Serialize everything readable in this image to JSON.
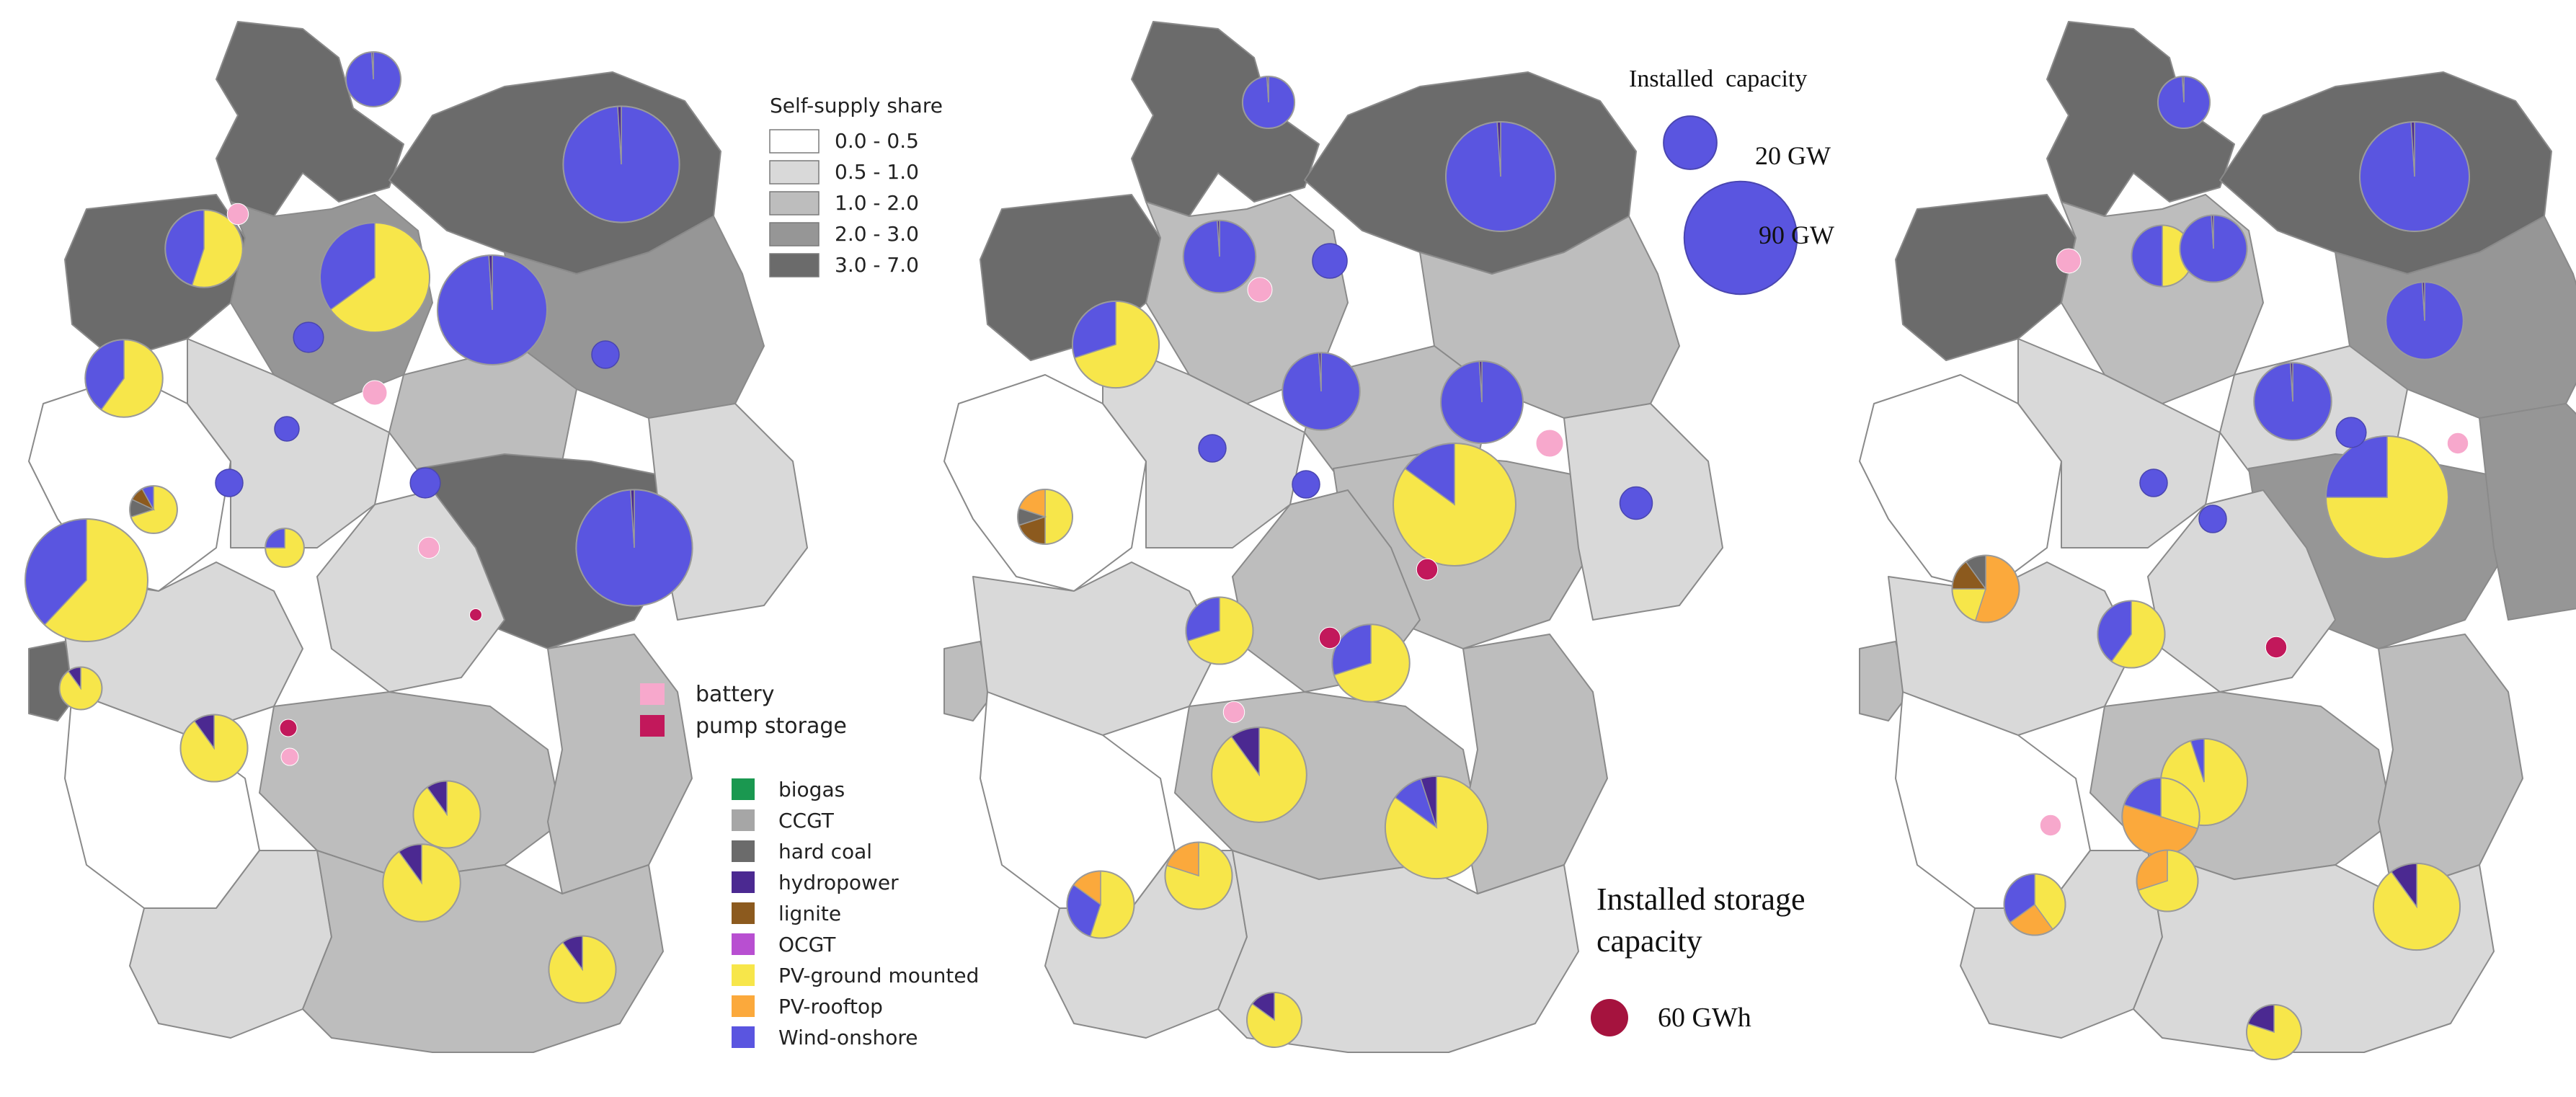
{
  "self_supply_legend": {
    "title": "Self-supply share",
    "classes": [
      {
        "label": "0.0 - 0.5",
        "color": "#ffffff"
      },
      {
        "label": "0.5 - 1.0",
        "color": "#d9d9d9"
      },
      {
        "label": "1.0 - 2.0",
        "color": "#bdbdbd"
      },
      {
        "label": "2.0 - 3.0",
        "color": "#969696"
      },
      {
        "label": "3.0 - 7.0",
        "color": "#6b6b6b"
      }
    ]
  },
  "storage_legend": {
    "items": [
      {
        "label": "battery",
        "color": "#f7a8cc"
      },
      {
        "label": "pump storage",
        "color": "#c2185b"
      }
    ]
  },
  "technology_legend": {
    "items": [
      {
        "label": "biogas",
        "color": "#1a9850"
      },
      {
        "label": "CCGT",
        "color": "#a6a6a6"
      },
      {
        "label": "hard coal",
        "color": "#6b6b6b"
      },
      {
        "label": "hydropower",
        "color": "#4b2991"
      },
      {
        "label": "lignite",
        "color": "#8c5a1e"
      },
      {
        "label": "OCGT",
        "color": "#b84fd1"
      },
      {
        "label": "PV-ground mounted",
        "color": "#f7e64a"
      },
      {
        "label": "PV-rooftop",
        "color": "#fba93c"
      },
      {
        "label": "Wind-onshore",
        "color": "#5a55e0"
      }
    ]
  },
  "capacity_legend": {
    "title": "Installed  capacity",
    "items": [
      {
        "label": "20 GW",
        "gw": 20
      },
      {
        "label": "90 GW",
        "gw": 90
      }
    ]
  },
  "storage_capacity_legend": {
    "title_line1": "Installed storage",
    "title_line2": "capacity",
    "item": {
      "label": "60 GWh",
      "gwh": 60
    }
  },
  "colors": {
    "border": "#8a8a8a",
    "pie_outline": "#9a9a9a",
    "circle_outline": "#4a46b0"
  },
  "maps": [
    {
      "name": "scenario-1",
      "pies": [
        {
          "gw": 20,
          "parts": {
            "wind": 0.99,
            "hydro": 0.01
          }
        },
        {
          "gw": 90,
          "parts": {
            "wind": 0.99,
            "hydro": 0.01
          }
        },
        {
          "gw": 40,
          "parts": {
            "pv": 0.55,
            "wind": 0.45
          }
        },
        {
          "gw": 80,
          "parts": {
            "pv": 0.65,
            "wind": 0.35
          }
        },
        {
          "gw": 40,
          "parts": {
            "pv": 0.6,
            "wind": 0.4
          }
        },
        {
          "gw": 80,
          "parts": {
            "wind": 0.99,
            "hydro": 0.01
          }
        },
        {
          "gw": 90,
          "parts": {
            "wind": 0.99,
            "hydro": 0.01
          }
        },
        {
          "gw": 15,
          "parts": {
            "pv": 0.7,
            "hard": 0.12,
            "lig": 0.1,
            "wind": 0.08
          }
        },
        {
          "gw": 100,
          "parts": {
            "pv": 0.62,
            "wind": 0.38
          }
        },
        {
          "gw": 10,
          "parts": {
            "pv": 0.75,
            "wind": 0.25
          }
        },
        {
          "gw": 12,
          "parts": {
            "pv": 0.9,
            "hydro": 0.1
          }
        },
        {
          "gw": 30,
          "parts": {
            "pv": 0.9,
            "hydro": 0.1
          }
        },
        {
          "gw": 30,
          "parts": {
            "pv": 0.9,
            "hydro": 0.1
          }
        },
        {
          "gw": 40,
          "parts": {
            "pv": 0.9,
            "hydro": 0.1
          }
        },
        {
          "gw": 30,
          "parts": {
            "pv": 0.9,
            "hydro": 0.1
          }
        }
      ],
      "circles": [
        {
          "kind": "wind",
          "gw": 6
        },
        {
          "kind": "wind",
          "gw": 4
        },
        {
          "kind": "wind",
          "gw": 5
        },
        {
          "kind": "wind",
          "gw": 6
        },
        {
          "kind": "wind",
          "gw": 5
        },
        {
          "kind": "battery",
          "gw": 3
        },
        {
          "kind": "battery",
          "gw": 4
        },
        {
          "kind": "battery",
          "gw": 3
        },
        {
          "kind": "battery",
          "gw": 2
        },
        {
          "kind": "pump",
          "gw": 2
        },
        {
          "kind": "pump",
          "gw": 1
        }
      ]
    },
    {
      "name": "scenario-2",
      "pies": [
        {
          "gw": 18,
          "parts": {
            "wind": 0.99,
            "hydro": 0.01
          }
        },
        {
          "gw": 80,
          "parts": {
            "wind": 0.99,
            "hydro": 0.01
          }
        },
        {
          "gw": 35,
          "parts": {
            "wind": 0.99,
            "hydro": 0.01
          }
        },
        {
          "gw": 40,
          "parts": {
            "wind": 0.99,
            "hydro": 0.01
          }
        },
        {
          "gw": 50,
          "parts": {
            "pv": 0.7,
            "wind": 0.3
          }
        },
        {
          "gw": 45,
          "parts": {
            "wind": 0.99,
            "hydro": 0.01
          }
        },
        {
          "gw": 100,
          "parts": {
            "pv": 0.85,
            "wind": 0.15
          }
        },
        {
          "gw": 20,
          "parts": {
            "pv": 0.5,
            "lig": 0.2,
            "hard": 0.1,
            "roof": 0.2
          }
        },
        {
          "gw": 30,
          "parts": {
            "pv": 0.7,
            "wind": 0.3
          }
        },
        {
          "gw": 40,
          "parts": {
            "pv": 0.7,
            "wind": 0.3
          }
        },
        {
          "gw": 60,
          "parts": {
            "pv": 0.9,
            "hydro": 0.1
          }
        },
        {
          "gw": 70,
          "parts": {
            "pv": 0.85,
            "wind": 0.1,
            "hydro": 0.05
          }
        },
        {
          "gw": 30,
          "parts": {
            "pv": 0.55,
            "wind": 0.3,
            "roof": 0.15
          }
        },
        {
          "gw": 30,
          "parts": {
            "pv": 0.8,
            "roof": 0.2
          }
        },
        {
          "gw": 20,
          "parts": {
            "pv": 0.85,
            "hydro": 0.15
          }
        }
      ],
      "circles": [
        {
          "kind": "wind",
          "gw": 8
        },
        {
          "kind": "wind",
          "gw": 5
        },
        {
          "kind": "wind",
          "gw": 5
        },
        {
          "kind": "wind",
          "gw": 7
        },
        {
          "kind": "battery",
          "gw": 4
        },
        {
          "kind": "battery",
          "gw": 5
        },
        {
          "kind": "battery",
          "gw": 3
        },
        {
          "kind": "pump",
          "gw": 3
        },
        {
          "kind": "pump",
          "gw": 3
        }
      ]
    },
    {
      "name": "scenario-3",
      "pies": [
        {
          "gw": 18,
          "parts": {
            "wind": 0.99,
            "hydro": 0.01
          }
        },
        {
          "gw": 80,
          "parts": {
            "wind": 0.99,
            "hydro": 0.01
          }
        },
        {
          "gw": 25,
          "parts": {
            "pv": 0.5,
            "wind": 0.5
          }
        },
        {
          "gw": 30,
          "parts": {
            "wind": 0.99,
            "hydro": 0.01
          }
        },
        {
          "gw": 40,
          "parts": {
            "wind": 0.99,
            "hydro": 0.01
          }
        },
        {
          "gw": 40,
          "parts": {
            "wind": 0.99,
            "hydro": 0.01
          }
        },
        {
          "gw": 100,
          "parts": {
            "pv": 0.75,
            "wind": 0.25
          }
        },
        {
          "gw": 30,
          "parts": {
            "roof": 0.55,
            "pv": 0.2,
            "lig": 0.15,
            "hard": 0.1
          }
        },
        {
          "gw": 30,
          "parts": {
            "pv": 0.6,
            "wind": 0.4
          }
        },
        {
          "gw": 50,
          "parts": {
            "pv": 0.95,
            "wind": 0.05
          }
        },
        {
          "gw": 40,
          "parts": {
            "pv": 0.3,
            "roof": 0.5,
            "wind": 0.2
          }
        },
        {
          "gw": 50,
          "parts": {
            "pv": 0.9,
            "hydro": 0.1
          }
        },
        {
          "gw": 25,
          "parts": {
            "pv": 0.4,
            "roof": 0.25,
            "wind": 0.35
          }
        },
        {
          "gw": 25,
          "parts": {
            "pv": 0.7,
            "roof": 0.3
          }
        },
        {
          "gw": 20,
          "parts": {
            "pv": 0.8,
            "hydro": 0.2
          }
        }
      ],
      "circles": [
        {
          "kind": "wind",
          "gw": 6
        },
        {
          "kind": "wind",
          "gw": 5
        },
        {
          "kind": "wind",
          "gw": 5
        },
        {
          "kind": "battery",
          "gw": 4
        },
        {
          "kind": "battery",
          "gw": 3
        },
        {
          "kind": "battery",
          "gw": 3
        },
        {
          "kind": "pump",
          "gw": 3
        }
      ]
    }
  ]
}
